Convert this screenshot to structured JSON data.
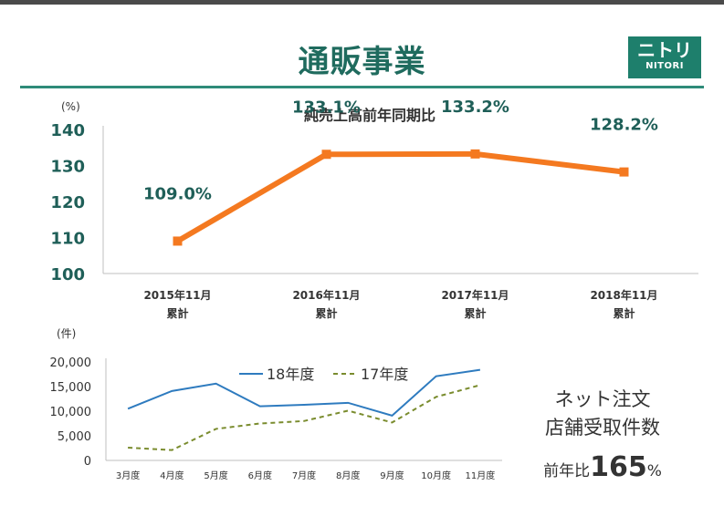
{
  "header": {
    "title": "通販事業",
    "logo_big": "ニトリ",
    "logo_small": "NITORI"
  },
  "colors": {
    "accent": "#1e7f6c",
    "title": "#1f6b5e",
    "main_line": "#f47920",
    "series_18": "#2e7bbf",
    "series_17": "#7a8c2e"
  },
  "chart_data": [
    {
      "type": "line",
      "title": "純売上高前年同期比",
      "unit_label": "(%)",
      "categories": [
        "2015年11月\n累計",
        "2016年11月\n累計",
        "2017年11月\n累計",
        "2018年11月\n累計"
      ],
      "category_lines": [
        [
          "2015年11月",
          "累計"
        ],
        [
          "2016年11月",
          "累計"
        ],
        [
          "2017年11月",
          "累計"
        ],
        [
          "2018年11月",
          "累計"
        ]
      ],
      "values": [
        109.0,
        133.1,
        133.2,
        128.2
      ],
      "data_labels": [
        "109.0%",
        "133.1%",
        "133.2%",
        "128.2%"
      ],
      "ylim": [
        100,
        140
      ],
      "yticks": [
        100,
        110,
        120,
        130,
        140
      ],
      "grid": false
    },
    {
      "type": "line",
      "title": "",
      "unit_label": "(件)",
      "categories": [
        "3月度",
        "4月度",
        "5月度",
        "6月度",
        "7月度",
        "8月度",
        "9月度",
        "10月度",
        "11月度"
      ],
      "ylim": [
        0,
        20000
      ],
      "yticks": [
        0,
        5000,
        10000,
        15000,
        20000
      ],
      "ytick_labels": [
        "0",
        "5,000",
        "10,000",
        "15,000",
        "20,000"
      ],
      "legend_position": "top-right",
      "series": [
        {
          "name": "18年度",
          "values": [
            10500,
            14100,
            15600,
            11000,
            11300,
            11700,
            9100,
            17100,
            18400
          ]
        },
        {
          "name": "17年度",
          "values": [
            2600,
            2100,
            6400,
            7500,
            8000,
            10100,
            7700,
            12900,
            15300
          ]
        }
      ],
      "grid": false
    }
  ],
  "side_note": {
    "line1": "ネット注文",
    "line2": "店舗受取件数",
    "ratio_prefix": "前年比",
    "ratio_value": "165",
    "ratio_suffix": "%"
  }
}
